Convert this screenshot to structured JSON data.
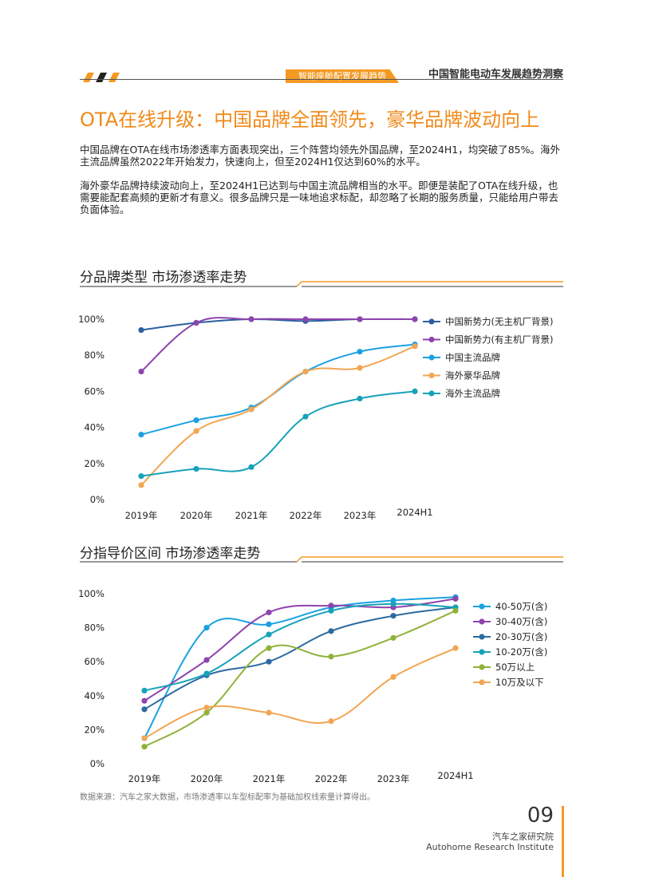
{
  "header": {
    "report_title": "中国智能电动车发展趋势洞察",
    "section_tag": "智能座舱配置发展趋势"
  },
  "colors": {
    "accent": "#f39a23",
    "title_orange": "#f08a1a"
  },
  "main_title": "OTA在线升级：中国品牌全面领先，豪华品牌波动向上",
  "paragraphs": [
    "中国品牌在OTA在线市场渗透率方面表现突出，三个阵营均领先外国品牌，至2024H1，均突破了85%。海外主流品牌虽然2022年开始发力，快速向上，但至2024H1仅达到60%的水平。",
    "海外豪华品牌持续波动向上，至2024H1已达到与中国主流品牌相当的水平。即便是装配了OTA在线升级，也需要能配套高频的更新才有意义。很多品牌只是一味地追求标配，却忽略了长期的服务质量，只能给用户带去负面体验。"
  ],
  "section1_title": "分品牌类型  市场渗透率走势",
  "section2_title": "分指导价区间  市场渗透率走势",
  "source_note": "数据来源：汽车之家大数据，市场渗透率以车型标配率为基础加权线索量计算得出。",
  "footer": {
    "page_number": "09",
    "org_cn": "汽车之家研究院",
    "org_en": "Autohome Research Institute"
  },
  "chart_data": [
    {
      "type": "line",
      "categories": [
        "2019年",
        "2020年",
        "2021年",
        "2022年",
        "2023年",
        "2024H1"
      ],
      "yticks": [
        "0%",
        "20%",
        "40%",
        "60%",
        "80%",
        "100%"
      ],
      "ylim": [
        0,
        100
      ],
      "legend_position": "right",
      "grid": false,
      "series": [
        {
          "name": "中国新势力(无主机厂背景)",
          "color": "#2c5f9e",
          "values": [
            94,
            98,
            100,
            99,
            100,
            100
          ]
        },
        {
          "name": "中国新势力(有主机厂背景)",
          "color": "#8e44ad",
          "values": [
            71,
            98,
            100,
            100,
            100,
            100
          ]
        },
        {
          "name": "中国主流品牌",
          "color": "#1ba1e2",
          "values": [
            36,
            44,
            51,
            71,
            82,
            86
          ]
        },
        {
          "name": "海外豪华品牌",
          "color": "#f2a654",
          "values": [
            8,
            38,
            50,
            71,
            73,
            85
          ]
        },
        {
          "name": "海外主流品牌",
          "color": "#17a2b8",
          "values": [
            13,
            17,
            18,
            46,
            56,
            60
          ]
        }
      ]
    },
    {
      "type": "line",
      "categories": [
        "2019年",
        "2020年",
        "2021年",
        "2022年",
        "2023年",
        "2024H1"
      ],
      "yticks": [
        "0%",
        "20%",
        "40%",
        "60%",
        "80%",
        "100%"
      ],
      "ylim": [
        0,
        100
      ],
      "legend_position": "right",
      "grid": false,
      "series": [
        {
          "name": "40-50万(含)",
          "color": "#1ba1e2",
          "values": [
            15,
            80,
            82,
            92,
            96,
            98
          ]
        },
        {
          "name": "30-40万(含)",
          "color": "#8e44ad",
          "values": [
            37,
            61,
            89,
            93,
            92,
            97
          ]
        },
        {
          "name": "20-30万(含)",
          "color": "#2c6aa0",
          "values": [
            32,
            52,
            60,
            78,
            87,
            92
          ]
        },
        {
          "name": "10-20万(含)",
          "color": "#17a2b8",
          "values": [
            43,
            53,
            76,
            90,
            94,
            92
          ]
        },
        {
          "name": "50万以上",
          "color": "#8fb23a",
          "values": [
            10,
            30,
            68,
            63,
            74,
            90
          ]
        },
        {
          "name": "10万及以下",
          "color": "#f2a654",
          "values": [
            15,
            33,
            30,
            25,
            51,
            68
          ]
        }
      ]
    }
  ]
}
